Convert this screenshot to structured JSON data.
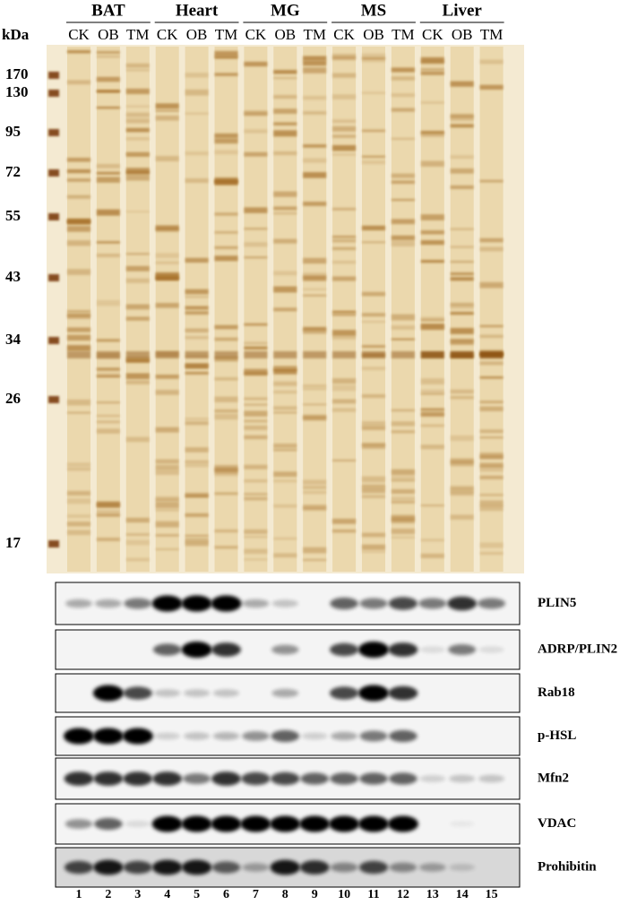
{
  "gel": {
    "unit_label": "kDa",
    "groups": [
      {
        "name": "BAT",
        "lanes": [
          "CK",
          "OB",
          "TM"
        ]
      },
      {
        "name": "Heart",
        "lanes": [
          "CK",
          "OB",
          "TM"
        ]
      },
      {
        "name": "MG",
        "lanes": [
          "CK",
          "OB",
          "TM"
        ]
      },
      {
        "name": "MS",
        "lanes": [
          "CK",
          "OB",
          "TM"
        ]
      },
      {
        "name": "Liver",
        "lanes": [
          "CK",
          "OB",
          "TM"
        ]
      }
    ],
    "markers": [
      "170",
      "130",
      "95",
      "72",
      "55",
      "43",
      "34",
      "26",
      "17"
    ]
  },
  "blots": [
    "PLIN5",
    "ADRP/PLIN2",
    "Rab18",
    "p-HSL",
    "Mfn2",
    "VDAC",
    "Prohibitin"
  ],
  "lane_numbers": [
    "1",
    "2",
    "3",
    "4",
    "5",
    "6",
    "7",
    "8",
    "9",
    "10",
    "11",
    "12",
    "13",
    "14",
    "15"
  ]
}
